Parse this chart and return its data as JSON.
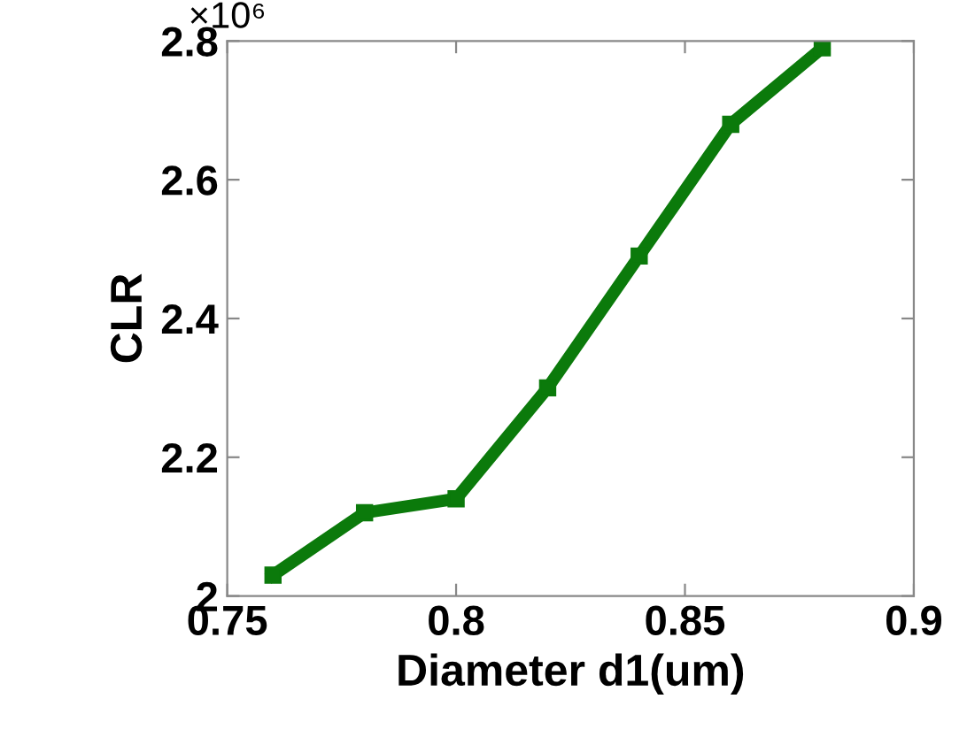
{
  "chart_data": {
    "type": "line",
    "xlabel": "Diameter d1(um)",
    "ylabel": "CLR",
    "annotations": [
      "×10⁶"
    ],
    "x": [
      0.76,
      0.78,
      0.8,
      0.82,
      0.84,
      0.86,
      0.88
    ],
    "series": [
      {
        "color": "#0b7a0b",
        "values": [
          2.03,
          2.12,
          2.14,
          2.3,
          2.49,
          2.68,
          2.79
        ]
      }
    ],
    "xlim": [
      0.75,
      0.9
    ],
    "xticks": [
      0.75,
      0.8,
      0.85,
      0.9
    ],
    "ylim": [
      2,
      2.8
    ],
    "yticks": [
      2,
      2.2,
      2.4,
      2.6,
      2.8
    ],
    "grid": false,
    "legend": false,
    "marker": "square",
    "line_style": "solid"
  }
}
